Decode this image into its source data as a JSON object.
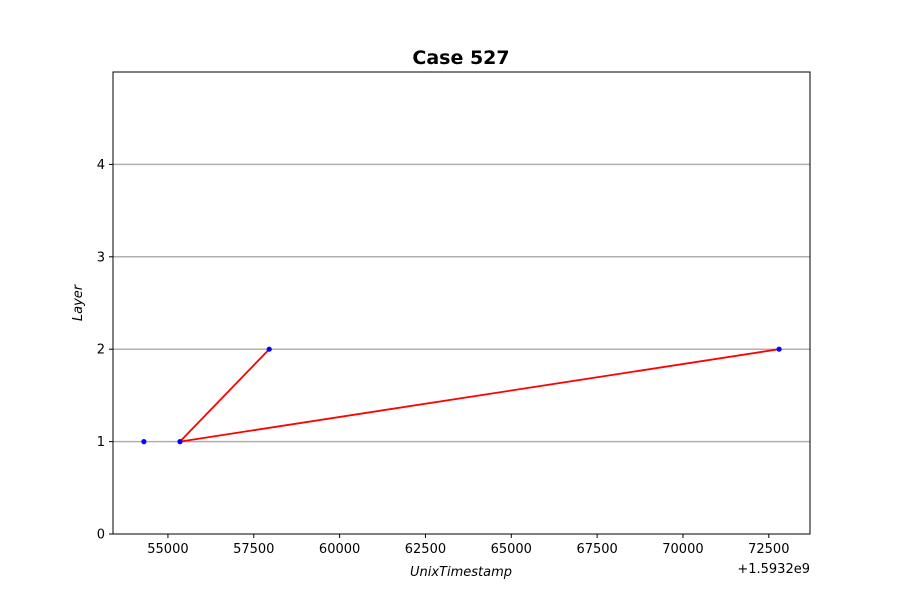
{
  "chart_data": {
    "type": "line",
    "title": "Case 527",
    "xlabel": "UnixTimestamp",
    "ylabel": "Layer",
    "x_offset_label": "+1.5932e9",
    "xlim": [
      53400,
      73700
    ],
    "ylim": [
      0,
      5
    ],
    "x_ticks": [
      55000,
      57500,
      60000,
      62500,
      65000,
      67500,
      70000,
      72500
    ],
    "x_tick_labels": [
      "55000",
      "57500",
      "60000",
      "62500",
      "65000",
      "67500",
      "70000",
      "72500"
    ],
    "y_ticks": [
      0,
      1,
      2,
      3,
      4
    ],
    "y_tick_labels": [
      "0",
      "1",
      "2",
      "3",
      "4"
    ],
    "grid": "horizontal",
    "gridlines_y": [
      1,
      2,
      3,
      4
    ],
    "points": [
      {
        "x": 54300,
        "y": 1
      },
      {
        "x": 55350,
        "y": 1
      },
      {
        "x": 57950,
        "y": 2
      },
      {
        "x": 72800,
        "y": 2
      }
    ],
    "segments": [
      {
        "from": [
          55350,
          1
        ],
        "to": [
          57950,
          2
        ]
      },
      {
        "from": [
          55350,
          1
        ],
        "to": [
          72800,
          2
        ]
      }
    ],
    "colors": {
      "point": "#0000ff",
      "line": "#ff0000",
      "grid": "#b0b0b0",
      "axes": "#000000"
    }
  }
}
